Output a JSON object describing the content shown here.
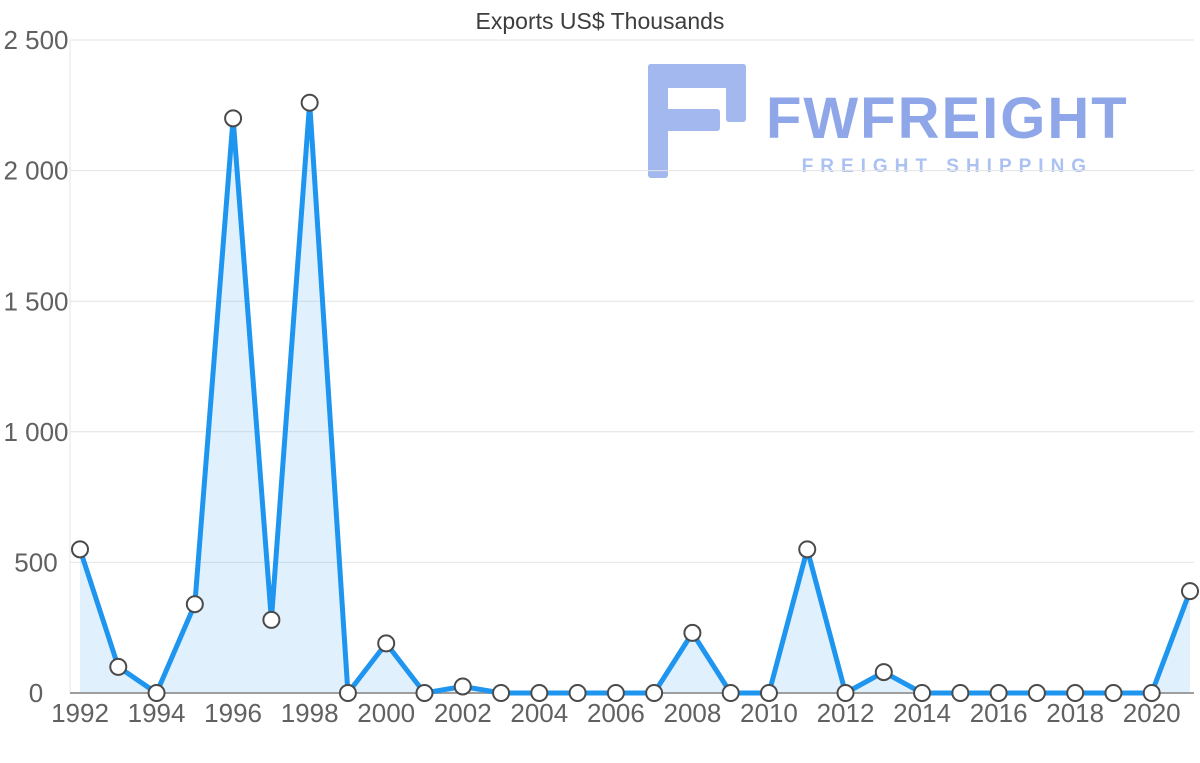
{
  "title": "Exports US$ Thousands",
  "logo": {
    "brand": "FWFREIGHT",
    "tagline": "FREIGHT SHIPPING",
    "color_icon": "#a3b8ef",
    "color_brand": "#8fa7e9",
    "color_tagline": "#aac1f1"
  },
  "colors": {
    "line": "#1e96f0",
    "area": "rgba(33, 150, 243, 0.14)",
    "marker_fill": "#ffffff",
    "marker_stroke": "#4a4a4a",
    "grid": "#e4e4e4",
    "axis": "#9e9e9e",
    "tick_text": "#616161",
    "title_text": "#3d3d3d"
  },
  "chart_data": {
    "type": "area",
    "title": "Exports US$ Thousands",
    "xlabel": "",
    "ylabel": "",
    "x": [
      1992,
      1993,
      1994,
      1995,
      1996,
      1997,
      1998,
      1999,
      2000,
      2001,
      2002,
      2003,
      2004,
      2005,
      2006,
      2007,
      2008,
      2009,
      2010,
      2011,
      2012,
      2013,
      2014,
      2015,
      2016,
      2017,
      2018,
      2019,
      2020,
      2021
    ],
    "values": [
      550,
      100,
      0,
      340,
      2200,
      280,
      2260,
      0,
      190,
      0,
      25,
      0,
      0,
      0,
      0,
      0,
      230,
      0,
      0,
      550,
      0,
      80,
      0,
      0,
      0,
      0,
      0,
      0,
      0,
      390
    ],
    "ylim": [
      0,
      2500
    ],
    "yticks": [
      0,
      500,
      1000,
      1500,
      2000,
      2500
    ],
    "ytick_labels": [
      "0",
      "500",
      "1 000",
      "1 500",
      "2 000",
      "2 500"
    ],
    "xtick_step": 2,
    "grid": true,
    "legend": "none",
    "marker": "circle"
  }
}
